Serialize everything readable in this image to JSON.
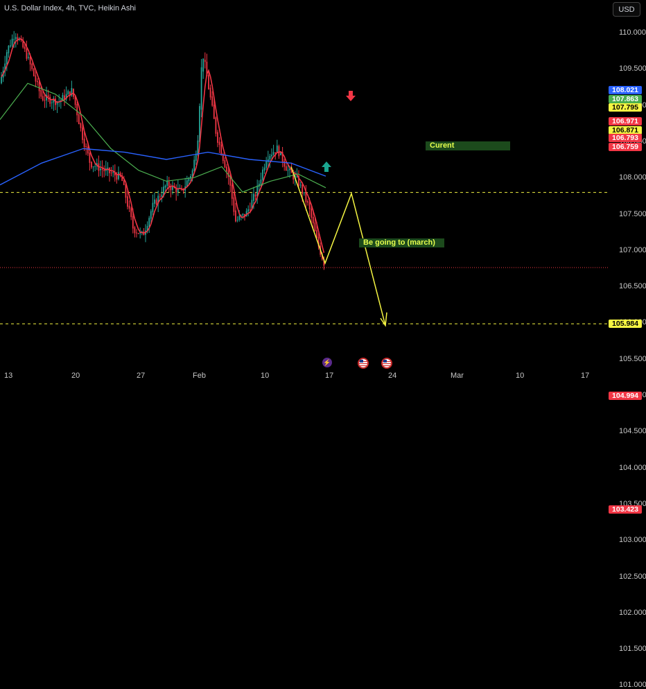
{
  "header": {
    "title": "U.S. Dollar Index, 4h, TVC, Heikin Ashi",
    "currency_button": "USD"
  },
  "y_axis_labels": [
    "110.000",
    "109.500",
    "109.000",
    "108.500",
    "108.000",
    "107.500",
    "107.000",
    "106.500",
    "106.000",
    "105.500",
    "105.000",
    "104.500",
    "104.000",
    "103.500",
    "103.000",
    "102.500",
    "102.000",
    "101.500",
    "101.000"
  ],
  "x_axis_labels": [
    "13",
    "20",
    "27",
    "Feb",
    "10",
    "17",
    "24",
    "Mar",
    "10",
    "17"
  ],
  "price_tags": [
    {
      "label": "108.021",
      "value": 108.021,
      "bg": "#2962ff",
      "fg": "#ffffff"
    },
    {
      "label": "107.863",
      "value": 107.863,
      "bg": "#4caf50",
      "fg": "#ffffff"
    },
    {
      "label": "107.795",
      "value": 107.795,
      "bg": "#f5f542",
      "fg": "#000000"
    },
    {
      "label": "106.971",
      "value": 106.971,
      "bg": "#f23645",
      "fg": "#ffffff"
    },
    {
      "label": "106.871",
      "value": 106.871,
      "bg": "#f5f542",
      "fg": "#000000"
    },
    {
      "label": "106.793",
      "value": 106.793,
      "bg": "#f23645",
      "fg": "#ffffff"
    },
    {
      "label": "106.759",
      "value": 106.759,
      "bg": "#f23645",
      "fg": "#ffffff"
    },
    {
      "label": "105.984",
      "value": 105.984,
      "bg": "#f5f542",
      "fg": "#000000"
    },
    {
      "label": "104.994",
      "value": 104.994,
      "bg": "#f23645",
      "fg": "#ffffff"
    },
    {
      "label": "103.423",
      "value": 103.423,
      "bg": "#f23645",
      "fg": "#ffffff"
    }
  ],
  "horizontal_levels": [
    {
      "value": 107.795,
      "color": "#f5f542",
      "style": "dashed"
    },
    {
      "value": 106.759,
      "color": "#f23645",
      "style": "dotted"
    },
    {
      "value": 105.984,
      "color": "#f5f542",
      "style": "dashed"
    },
    {
      "value": 104.994,
      "color": "#f23645",
      "style": "dashed"
    },
    {
      "value": 103.423,
      "color": "#f23645",
      "style": "dashed"
    }
  ],
  "annotations": {
    "current": "Curent",
    "target": "Be going to (march)"
  },
  "colors": {
    "bull": "#26a69a",
    "bear": "#f23645",
    "ma_fast": "#f23645",
    "ma_mid": "#4caf50",
    "ma_slow": "#2962ff",
    "path": "#f5f542"
  },
  "events": [
    "lightning-icon",
    "us-flag-icon",
    "us-flag-icon"
  ]
}
